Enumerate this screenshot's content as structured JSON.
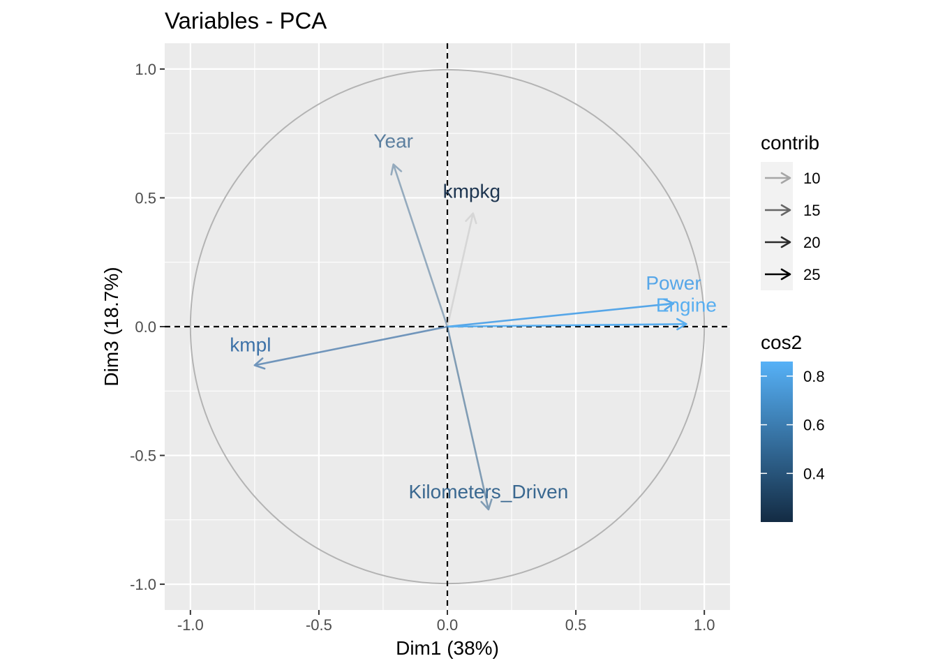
{
  "chart_data": {
    "type": "pca-variables",
    "title": "Variables - PCA",
    "xlabel": "Dim1 (38%)",
    "ylabel": "Dim3 (18.7%)",
    "xlim": [
      -1.1,
      1.1
    ],
    "ylim": [
      -1.1,
      1.1
    ],
    "x_ticks": [
      {
        "value": -1.0,
        "label": "-1.0"
      },
      {
        "value": -0.5,
        "label": "-0.5"
      },
      {
        "value": 0.0,
        "label": "0.0"
      },
      {
        "value": 0.5,
        "label": "0.5"
      },
      {
        "value": 1.0,
        "label": "1.0"
      }
    ],
    "y_ticks": [
      {
        "value": -1.0,
        "label": "-1.0"
      },
      {
        "value": -0.5,
        "label": "-0.5"
      },
      {
        "value": 0.0,
        "label": "0.0"
      },
      {
        "value": 0.5,
        "label": "0.5"
      },
      {
        "value": 1.0,
        "label": "1.0"
      }
    ],
    "grid": true,
    "reference_lines": {
      "x": 0,
      "y": 0,
      "style": "dashed"
    },
    "correlation_circle": {
      "radius": 1.0,
      "color": "#b3b3b3"
    },
    "variables": [
      {
        "name": "Year",
        "x": -0.21,
        "y": 0.63,
        "cos2": 0.55,
        "contrib": 17,
        "color": "#5c7f9f",
        "opacity": 0.6
      },
      {
        "name": "kmpkg",
        "x": 0.1,
        "y": 0.44,
        "cos2": 0.21,
        "contrib": 8,
        "color": "#c2c2c2",
        "opacity": 0.5
      },
      {
        "name": "Power",
        "x": 0.88,
        "y": 0.09,
        "cos2": 0.79,
        "contrib": 22,
        "color": "#56a6e8",
        "opacity": 1.0
      },
      {
        "name": "Engine",
        "x": 0.93,
        "y": 0.01,
        "cos2": 0.86,
        "contrib": 24,
        "color": "#58aef0",
        "opacity": 1.0
      },
      {
        "name": "kmpl",
        "x": -0.75,
        "y": -0.15,
        "cos2": 0.61,
        "contrib": 19,
        "color": "#3d72a8",
        "opacity": 0.7
      },
      {
        "name": "Kilometers_Driven",
        "x": 0.16,
        "y": -0.71,
        "cos2": 0.53,
        "contrib": 16,
        "color": "#3a6890",
        "opacity": 0.6
      }
    ],
    "legend": {
      "placement": "right",
      "contrib": {
        "title": "contrib",
        "items": [
          {
            "label": "10",
            "color": "#a6a6a6"
          },
          {
            "label": "15",
            "color": "#666666"
          },
          {
            "label": "20",
            "color": "#2b2b2b"
          },
          {
            "label": "25",
            "color": "#000000"
          }
        ]
      },
      "cos2": {
        "title": "cos2",
        "range": [
          0.2,
          0.86
        ],
        "low_color": "#132b43",
        "high_color": "#56b1f7",
        "ticks": [
          {
            "value": 0.4,
            "label": "0.4"
          },
          {
            "value": 0.6,
            "label": "0.6"
          },
          {
            "value": 0.8,
            "label": "0.8"
          }
        ]
      }
    }
  }
}
